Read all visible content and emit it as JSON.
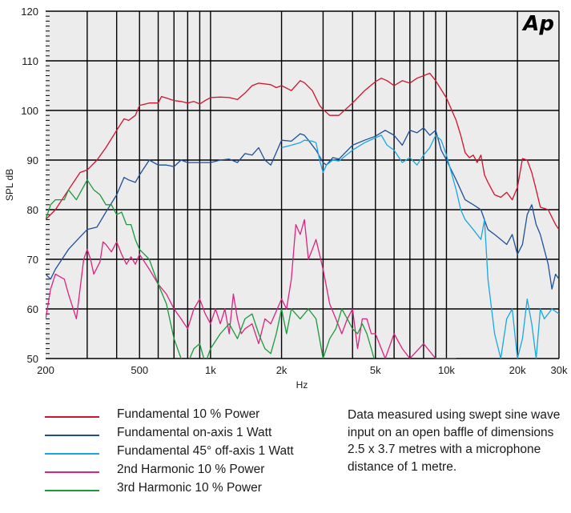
{
  "chart_data": {
    "type": "line",
    "logo": "Ap",
    "xlabel": "Hz",
    "ylabel": "SPL dB",
    "xscale": "log",
    "xlim": [
      200,
      30000
    ],
    "ylim": [
      50,
      120
    ],
    "grid": true,
    "x_ticks": [
      {
        "value": 200,
        "label": "200"
      },
      {
        "value": 500,
        "label": "500"
      },
      {
        "value": 1000,
        "label": "1k"
      },
      {
        "value": 2000,
        "label": "2k"
      },
      {
        "value": 5000,
        "label": "5k"
      },
      {
        "value": 10000,
        "label": "10k"
      },
      {
        "value": 20000,
        "label": "20k"
      },
      {
        "value": 30000,
        "label": "30k"
      }
    ],
    "y_ticks": [
      50,
      60,
      70,
      80,
      90,
      100,
      110,
      120
    ],
    "legend_position": "bottom-left",
    "series": [
      {
        "name": "Fundamental 10 % Power",
        "color": "#d4112e",
        "x": [
          200,
          220,
          250,
          280,
          300,
          330,
          360,
          400,
          430,
          450,
          480,
          500,
          550,
          600,
          620,
          650,
          700,
          750,
          800,
          850,
          900,
          950,
          1000,
          1100,
          1200,
          1300,
          1400,
          1500,
          1600,
          1800,
          1900,
          2000,
          2200,
          2400,
          2500,
          2700,
          2900,
          3000,
          3200,
          3500,
          4000,
          4500,
          5000,
          5300,
          5600,
          6000,
          6500,
          7000,
          7500,
          8000,
          8500,
          9000,
          10000,
          11000,
          11500,
          12000,
          12500,
          13000,
          13500,
          14000,
          14500,
          15000,
          16000,
          17000,
          18000,
          19000,
          20000,
          21000,
          22000,
          23000,
          24000,
          25000,
          27000,
          29000,
          30000
        ],
        "y": [
          78,
          80,
          84,
          87.5,
          88,
          90,
          92.5,
          96,
          98.3,
          98,
          99,
          101,
          101.5,
          101.5,
          102.8,
          102.5,
          102,
          101.8,
          101.5,
          101.8,
          101.3,
          102,
          102.6,
          102.7,
          102.6,
          102.2,
          103.5,
          105,
          105.5,
          105.2,
          104.6,
          105,
          104,
          106,
          105.6,
          104,
          101,
          100.2,
          99,
          99,
          101.5,
          104,
          105.8,
          106.5,
          106,
          105,
          106,
          105.5,
          106.5,
          107,
          107.5,
          106,
          102.5,
          98,
          95,
          91.5,
          90.5,
          91,
          89.5,
          91,
          87,
          85.5,
          83,
          82.5,
          83.5,
          82,
          84.5,
          90.3,
          90,
          87.5,
          84,
          80.5,
          80,
          77,
          76
        ]
      },
      {
        "name": "Fundamental on-axis 1 Watt",
        "color": "#1d4f9a",
        "x": [
          200,
          210,
          220,
          250,
          280,
          300,
          330,
          360,
          400,
          430,
          450,
          480,
          500,
          550,
          600,
          650,
          700,
          750,
          800,
          850,
          900,
          1000,
          1100,
          1200,
          1300,
          1400,
          1500,
          1600,
          1700,
          1800,
          2000,
          2200,
          2400,
          2500,
          2600,
          2800,
          3000,
          3100,
          3300,
          3500,
          4000,
          4500,
          5000,
          5500,
          6000,
          6500,
          7000,
          7500,
          8000,
          8500,
          9000,
          9500,
          10000,
          11000,
          12000,
          13000,
          14000,
          15000,
          16000,
          17000,
          18000,
          19000,
          20000,
          21000,
          22000,
          23000,
          24000,
          25000,
          27000,
          28000,
          29000,
          30000
        ],
        "y": [
          67,
          66,
          68,
          72,
          74.5,
          76,
          76.5,
          79.5,
          83,
          86.5,
          86,
          85.5,
          87,
          90,
          89,
          89,
          88.7,
          90,
          89.5,
          89.5,
          89.5,
          89.5,
          90,
          90.2,
          89.5,
          91.3,
          91,
          92.5,
          90,
          89,
          94,
          93.8,
          95.3,
          95,
          94,
          92,
          89.5,
          89,
          90.5,
          90.2,
          93,
          94,
          94.8,
          96,
          95,
          93,
          96,
          95.5,
          96.5,
          95,
          96,
          92,
          90,
          86,
          82,
          81,
          80,
          76,
          75,
          74,
          73,
          75,
          71,
          73,
          79,
          81,
          77,
          75,
          69,
          64,
          67,
          66
        ]
      },
      {
        "name": "Fundamental 45° off-axis 1 Watt",
        "color": "#1aa7e0",
        "x": [
          2000,
          2200,
          2400,
          2500,
          2700,
          2800,
          2900,
          3000,
          3100,
          3300,
          3500,
          4000,
          4500,
          5000,
          5300,
          5600,
          6000,
          6500,
          7000,
          7500,
          8000,
          8500,
          9000,
          9500,
          10000,
          11000,
          11500,
          12000,
          13000,
          14000,
          14500,
          15000,
          16000,
          17000,
          18000,
          19000,
          20000,
          21000,
          22000,
          23000,
          24000,
          25000,
          26000,
          28000,
          30000
        ],
        "y": [
          92.5,
          93,
          93.5,
          94,
          93.8,
          93.5,
          90,
          87.5,
          89,
          90,
          89.8,
          92,
          93.5,
          94.5,
          95,
          93,
          92,
          89.5,
          90.5,
          89,
          91,
          92.5,
          95,
          94,
          91,
          84,
          80,
          78,
          76,
          74,
          78,
          66,
          55,
          50,
          58,
          60,
          50,
          54,
          62,
          57,
          50,
          60,
          58,
          60,
          59
        ]
      },
      {
        "name": "2nd Harmonic 10 % Power",
        "color": "#db2380",
        "x": [
          200,
          210,
          220,
          240,
          250,
          270,
          290,
          300,
          310,
          320,
          340,
          350,
          360,
          380,
          400,
          420,
          440,
          460,
          480,
          500,
          550,
          600,
          650,
          700,
          750,
          800,
          850,
          900,
          950,
          1000,
          1050,
          1100,
          1150,
          1200,
          1250,
          1300,
          1350,
          1400,
          1500,
          1600,
          1700,
          1800,
          2000,
          2100,
          2200,
          2300,
          2400,
          2500,
          2600,
          2700,
          2800,
          3000,
          3200,
          3400,
          3600,
          3800,
          4000,
          4200,
          4400,
          4600,
          4800,
          5000,
          5500,
          6000,
          6500,
          7000,
          8000,
          9000,
          10000,
          11000
        ],
        "y": [
          58,
          64,
          67,
          66,
          63,
          58,
          70,
          72,
          70,
          67,
          69.5,
          73.5,
          73,
          71.5,
          73.5,
          71,
          69,
          70.5,
          69,
          71,
          68,
          65,
          63,
          60,
          58,
          56,
          60,
          62,
          59,
          57,
          60,
          57,
          60,
          55,
          63,
          58,
          55,
          56,
          57,
          53,
          58,
          57,
          62,
          60,
          66,
          77,
          75,
          78,
          70,
          72,
          74,
          68,
          61,
          58,
          55,
          58,
          60,
          52,
          58,
          58,
          55,
          55,
          50,
          55,
          52,
          50,
          53,
          50,
          50,
          50
        ]
      },
      {
        "name": "3rd Harmonic 10 % Power",
        "color": "#1a9a3a",
        "x": [
          200,
          210,
          220,
          240,
          250,
          270,
          300,
          320,
          340,
          360,
          380,
          400,
          420,
          440,
          460,
          480,
          500,
          550,
          600,
          650,
          700,
          750,
          800,
          850,
          900,
          950,
          1000,
          1100,
          1200,
          1300,
          1400,
          1500,
          1600,
          1700,
          1800,
          1900,
          2000,
          2100,
          2200,
          2400,
          2600,
          2800,
          3000,
          3200,
          3400,
          3600,
          3800,
          4000,
          4200,
          4400,
          4600,
          4800,
          5000
        ],
        "y": [
          78,
          81,
          82,
          82,
          84,
          82,
          86,
          84,
          83,
          81,
          81,
          79,
          79.5,
          77,
          77,
          74,
          72,
          70,
          65,
          61,
          54,
          50,
          48,
          52,
          53,
          49,
          52,
          55,
          57,
          54,
          58,
          59,
          55,
          52,
          51,
          55,
          60,
          55,
          60,
          58,
          60,
          58,
          50,
          54,
          56,
          60,
          58,
          56,
          55,
          57,
          55,
          52,
          48
        ]
      }
    ]
  },
  "note": "Data measured using swept sine wave input on an open baffle of dimensions 2.5 x 3.7 metres with a microphone distance of 1 metre."
}
